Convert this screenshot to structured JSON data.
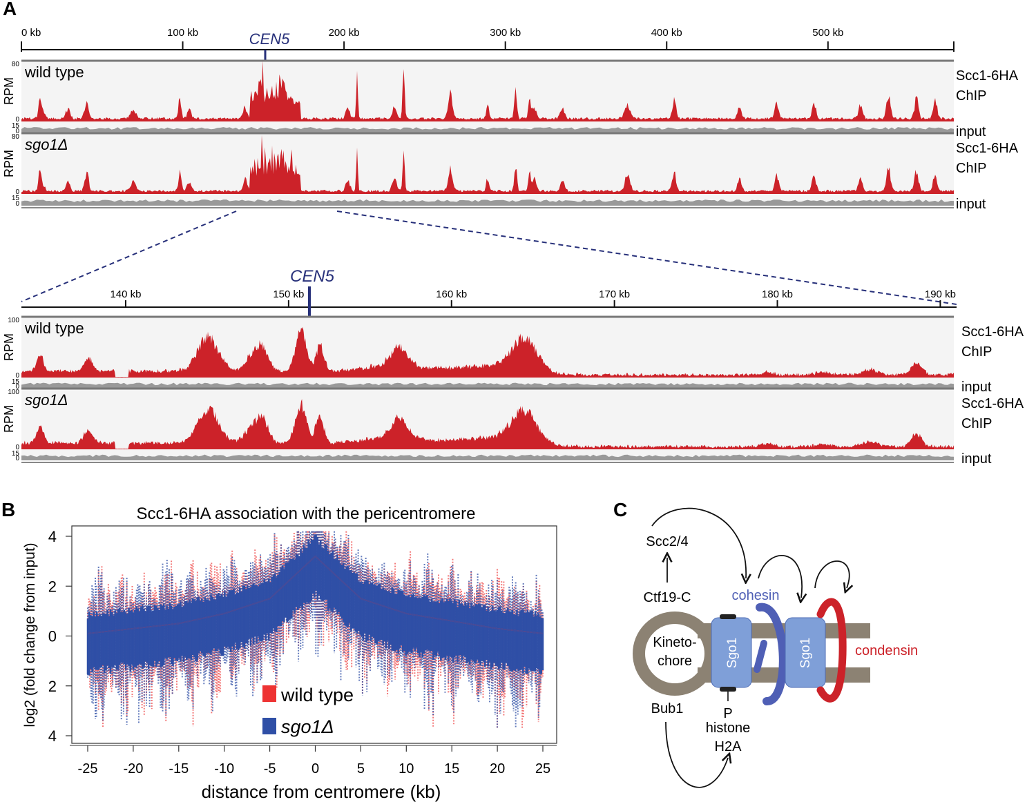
{
  "colors": {
    "chip": "#cc2229",
    "input": "#999999",
    "track_bg": "#f4f4f4",
    "navy": "#27307a",
    "wt": "#ee3333",
    "sgo": "#2f4fa6",
    "kine": "#8c8273",
    "sgo1": "#7f9fd8",
    "cohesin": "#4f5fb5",
    "condensin": "#cc2229"
  },
  "panelA": {
    "label": "A",
    "top_ruler": {
      "ticks": [
        {
          "kb": 0,
          "label": "0 kb"
        },
        {
          "kb": 100,
          "label": "100 kb"
        },
        {
          "kb": 200,
          "label": "200 kb"
        },
        {
          "kb": 300,
          "label": "300 kb"
        },
        {
          "kb": 400,
          "label": "400 kb"
        },
        {
          "kb": 500,
          "label": "500 kb"
        }
      ],
      "range_kb": [
        0,
        578
      ]
    },
    "cen_label": "CEN5",
    "cen_kb": 152,
    "zoom_range_kb": [
      133.6,
      191
    ],
    "top_tracks": [
      {
        "strain": "wild type",
        "italic": false,
        "chip_max": "80",
        "input_max": "15",
        "zero": "0",
        "axis": "RPM",
        "chip_label": [
          "Scc1-6HA",
          "ChIP"
        ],
        "input_label": "input"
      },
      {
        "strain": "sgo1Δ",
        "italic": true,
        "chip_max": "80",
        "input_max": "15",
        "zero": "0",
        "axis": "RPM",
        "chip_label": [
          "Scc1-6HA",
          "ChIP"
        ],
        "input_label": "input"
      }
    ],
    "zoom_ruler": {
      "ticks": [
        {
          "kb": 140,
          "label": "140 kb"
        },
        {
          "kb": 150,
          "label": "150 kb"
        },
        {
          "kb": 160,
          "label": "160 kb"
        },
        {
          "kb": 170,
          "label": "170 kb"
        },
        {
          "kb": 180,
          "label": "180 kb"
        },
        {
          "kb": 190,
          "label": "190 kb"
        }
      ]
    },
    "zoom_tracks": [
      {
        "strain": "wild type",
        "italic": false,
        "chip_max": "100",
        "input_max": "15",
        "zero": "0",
        "axis": "RPM",
        "chip_label": [
          "Scc1-6HA",
          "ChIP"
        ],
        "input_label": "input"
      },
      {
        "strain": "sgo1Δ",
        "italic": true,
        "chip_max": "100",
        "input_max": "15",
        "zero": "0",
        "axis": "RPM",
        "chip_label": [
          "Scc1-6HA",
          "ChIP"
        ],
        "input_label": "input"
      }
    ]
  },
  "panelB": {
    "label": "B",
    "chart_data": {
      "type": "line",
      "title": "Scc1-6HA association with the pericentromere",
      "xlabel": "distance from centromere (kb)",
      "ylabel": "log2 (fold change from input)",
      "xlim": [
        -25,
        25
      ],
      "ylim": [
        -4,
        4
      ],
      "x_ticks": [
        "-25",
        "-20",
        "-15",
        "-10",
        "-5",
        "0",
        "5",
        "10",
        "15",
        "20",
        "25"
      ],
      "y_ticks": [
        "4",
        "2",
        "0",
        "2",
        "4"
      ],
      "series": [
        {
          "name": "wild type",
          "italic": false,
          "x": [
            -25,
            -20,
            -15,
            -10,
            -5,
            0,
            5,
            10,
            15,
            20,
            25
          ],
          "values": [
            0.1,
            0.3,
            0.5,
            0.9,
            1.5,
            3.2,
            1.5,
            0.9,
            0.6,
            0.3,
            0.1
          ]
        },
        {
          "name": "sgo1Δ",
          "italic": true,
          "x": [
            -25,
            -20,
            -15,
            -10,
            -5,
            0,
            5,
            10,
            15,
            20,
            25
          ],
          "values": [
            0.1,
            0.3,
            0.5,
            0.9,
            1.5,
            3.2,
            1.5,
            0.9,
            0.6,
            0.3,
            0.1
          ]
        }
      ]
    }
  },
  "panelC": {
    "label": "C",
    "scc24": "Scc2/4",
    "ctf19": "Ctf19-C",
    "kine_lines": [
      "Kineto-",
      "chore"
    ],
    "bub1": "Bub1",
    "p": "P",
    "histone": [
      "histone",
      "H2A"
    ],
    "cohesin": "cohesin",
    "sgo1": "Sgo1",
    "condensin": "condensin"
  }
}
